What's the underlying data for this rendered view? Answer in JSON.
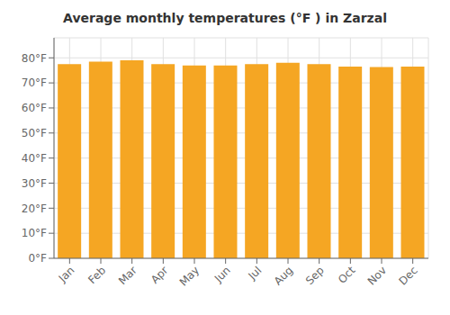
{
  "chart_data": {
    "type": "bar",
    "title": "Average monthly temperatures (°F ) in Zarzal",
    "categories": [
      "Jan",
      "Feb",
      "Mar",
      "Apr",
      "May",
      "Jun",
      "Jul",
      "Aug",
      "Sep",
      "Oct",
      "Nov",
      "Dec"
    ],
    "values": [
      77.5,
      78.5,
      79.0,
      77.5,
      77.0,
      77.0,
      77.5,
      78.0,
      77.5,
      76.5,
      76.3,
      76.5
    ],
    "color": "#F5A623",
    "ylim": [
      0,
      88
    ],
    "yticks": [
      {
        "value": 0,
        "label": "0°F"
      },
      {
        "value": 10,
        "label": "10°F"
      },
      {
        "value": 20,
        "label": "20°F"
      },
      {
        "value": 30,
        "label": "30°F"
      },
      {
        "value": 40,
        "label": "40°F"
      },
      {
        "value": 50,
        "label": "50°F"
      },
      {
        "value": 60,
        "label": "60°F"
      },
      {
        "value": 70,
        "label": "70°F"
      },
      {
        "value": 80,
        "label": "80°F"
      }
    ],
    "grid": true
  }
}
